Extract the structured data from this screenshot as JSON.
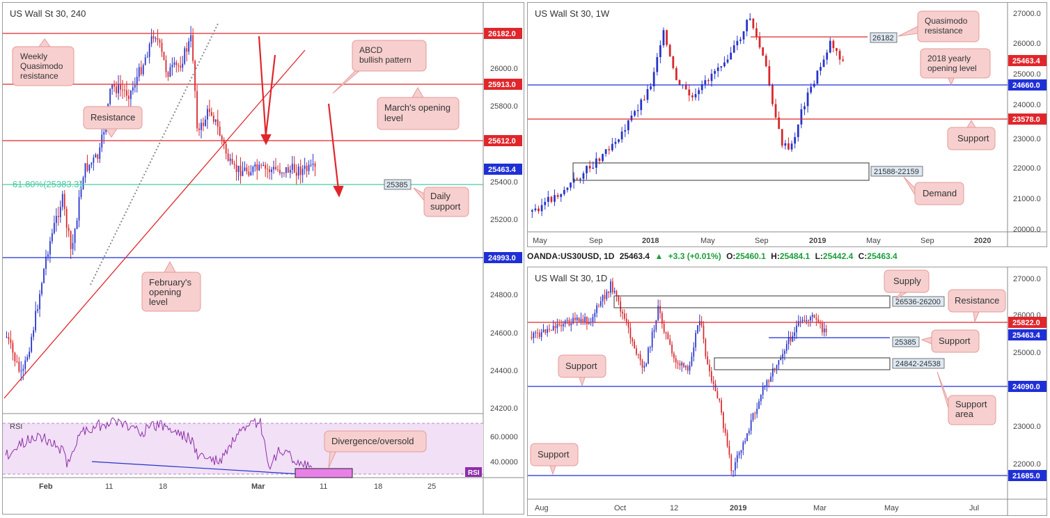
{
  "panels": {
    "h4": {
      "title": "US Wall St 30, 240",
      "yticks": [
        "26000.0",
        "25800.0",
        "25400.0",
        "25200.0",
        "24800.0",
        "24600.0",
        "24400.0",
        "24200.0"
      ],
      "xticks": [
        "Feb",
        "11",
        "18",
        "Mar",
        "11",
        "18",
        "25"
      ],
      "price_tags": [
        {
          "label": "26182.0",
          "color": "#e0262b"
        },
        {
          "label": "25913.0",
          "color": "#e0262b"
        },
        {
          "label": "25612.0",
          "color": "#e0262b"
        },
        {
          "label": "25463.4",
          "color": "#1f2fd6"
        },
        {
          "label": "24993.0",
          "color": "#1f2fd6"
        }
      ],
      "fib_label": "61.80%(25383.3)",
      "level_box": "25385",
      "callouts": {
        "weekly_qm": "Weekly Quasimodo resistance",
        "resistance": "Resistance",
        "abcd": "ABCD bullish pattern",
        "march_open": "March's opening level",
        "daily_support": "Daily support",
        "feb_open": "February's opening level"
      },
      "rsi": {
        "label": "RSI",
        "yticks": [
          "60.0000",
          "40.0000"
        ],
        "tag": "RSI",
        "callout": "Divergence/oversold"
      }
    },
    "weekly": {
      "title": "US Wall St 30, 1W",
      "yticks": [
        "27000.0",
        "26000.0",
        "25000.0",
        "24000.0",
        "23000.0",
        "22000.0",
        "21000.0",
        "20000.0"
      ],
      "xticks": [
        "May",
        "Sep",
        "2018",
        "May",
        "Sep",
        "2019",
        "May",
        "Sep",
        "2020"
      ],
      "price_tags": [
        {
          "label": "25463.4",
          "color": "#e0262b"
        },
        {
          "label": "24660.0",
          "color": "#1f2fd6"
        },
        {
          "label": "23578.0",
          "color": "#e0262b"
        }
      ],
      "level_box": "26182",
      "zone_box": "21588-22159",
      "callouts": {
        "qm": "Quasimodo resistance",
        "yearly": "2018 yearly opening level",
        "support": "Support",
        "demand": "Demand"
      }
    },
    "daily": {
      "title": "US Wall St 30, 1D",
      "yticks": [
        "27000.0",
        "26000.0",
        "25000.0",
        "24000.0",
        "23000.0",
        "22000.0"
      ],
      "xticks": [
        "Aug",
        "Oct",
        "12",
        "2019",
        "Mar",
        "May",
        "Jul"
      ],
      "price_tags": [
        {
          "label": "25822.0",
          "color": "#e0262b"
        },
        {
          "label": "25463.4",
          "color": "#1f2fd6"
        },
        {
          "label": "24090.0",
          "color": "#1f2fd6"
        },
        {
          "label": "21685.0",
          "color": "#1f2fd6"
        }
      ],
      "boxes": [
        "26536-26200",
        "25385",
        "24842-24538"
      ],
      "callouts": {
        "supply": "Supply",
        "resistance": "Resistance",
        "support_right": "Support",
        "support_left": "Support",
        "support_area": "Support area",
        "support_bottom": "Support"
      }
    }
  },
  "info_bar": {
    "symbol": "OANDA:US30USD, 1D",
    "last": "25463.4",
    "change": "+3.3 (+0.01%)",
    "o_label": "O:",
    "o": "25460.1",
    "h_label": "H:",
    "h": "25484.1",
    "l_label": "L:",
    "l": "25442.4",
    "c_label": "C:",
    "c": "25463.4"
  },
  "chart_data": [
    {
      "type": "candlestick",
      "title": "US Wall St 30, 240",
      "ylim": [
        24150,
        26250
      ],
      "x": [
        "Feb",
        "11",
        "18",
        "Mar",
        "11",
        "18",
        "25"
      ],
      "levels": {
        "weekly_quasimodo_resistance": 26182.0,
        "march_opening_level": 25913.0,
        "resistance": 25612.0,
        "last": 25463.4,
        "fib_61_8": 25383.3,
        "daily_support": 25385,
        "february_opening_level": 24993.0
      },
      "annotations": [
        "Weekly Quasimodo resistance",
        "Resistance",
        "ABCD bullish pattern",
        "March's opening level",
        "Daily support",
        "February's opening level",
        "Divergence/oversold"
      ]
    },
    {
      "type": "candlestick",
      "title": "US Wall St 30, 1W",
      "ylim": [
        19950,
        27150
      ],
      "x": [
        "May",
        "Sep",
        "2018",
        "May",
        "Sep",
        "2019",
        "May",
        "Sep",
        "2020"
      ],
      "levels": {
        "quasimodo_resistance": 26182,
        "last": 25463.4,
        "yearly_opening_2018": 24660.0,
        "support": 23578.0
      },
      "zones": [
        {
          "name": "Demand",
          "low": 21588,
          "high": 22159
        }
      ]
    },
    {
      "type": "candlestick",
      "title": "US Wall St 30, 1D",
      "ylim": [
        21450,
        27150
      ],
      "x": [
        "Aug",
        "Oct",
        "12",
        "2019",
        "Mar",
        "May",
        "Jul"
      ],
      "levels": {
        "resistance": 25822.0,
        "last": 25463.4,
        "support": 25385,
        "support_2": 24090.0,
        "support_3": 21685.0
      },
      "zones": [
        {
          "name": "Supply",
          "low": 26200,
          "high": 26536
        },
        {
          "name": "Support area",
          "low": 24538,
          "high": 24842
        }
      ]
    }
  ],
  "colors": {
    "red": "#e0262b",
    "blue": "#1f2fd6",
    "bull": "#2633c9",
    "bear": "#d7262b",
    "callout_bg": "#f7cfcf",
    "callout_border": "#e59a9a",
    "rsi": "#8e2ea8",
    "rsi_bg": "#f1e0f6",
    "fib": "#48c9a0"
  }
}
